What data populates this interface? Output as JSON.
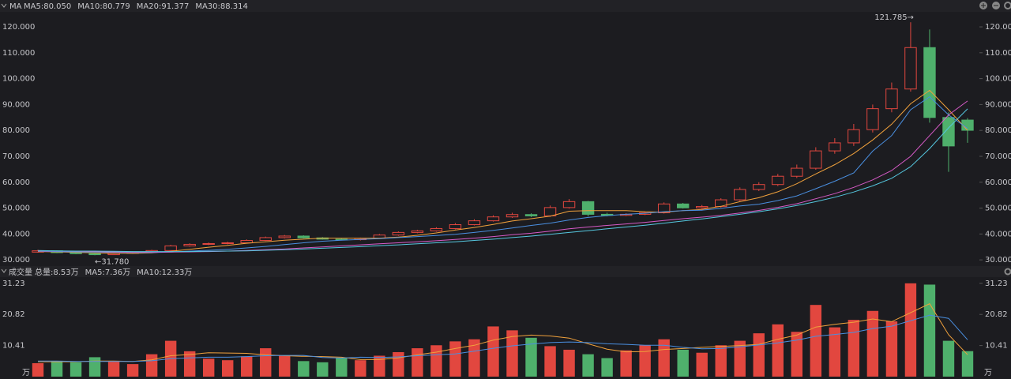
{
  "chart_data": [
    {
      "type": "candlestick",
      "legend_title": "MA",
      "open": [
        33.0,
        33.5,
        32.8,
        32.4,
        32.0,
        32.5,
        33.0,
        33.6,
        35.4,
        36.0,
        36.3,
        36.6,
        37.5,
        38.6,
        39.2,
        38.5,
        38.0,
        37.8,
        38.3,
        39.6,
        40.6,
        41.2,
        42.1,
        43.6,
        45.1,
        46.6,
        47.5,
        47.0,
        50.2,
        52.5,
        47.6,
        47.2,
        47.6,
        48.2,
        51.6,
        50.1,
        50.6,
        53.2,
        57.2,
        59.1,
        62.3,
        65.4,
        72.1,
        75.2,
        80.3,
        88.4,
        96.0,
        112.0,
        85.0,
        84.0
      ],
      "high": [
        33.9,
        33.7,
        33.0,
        32.6,
        32.8,
        33.3,
        33.9,
        35.8,
        36.4,
        36.7,
        37.0,
        37.9,
        39.0,
        39.6,
        39.5,
        38.8,
        38.3,
        38.6,
        40.0,
        41.0,
        41.6,
        42.6,
        44.2,
        45.7,
        47.2,
        48.2,
        48.0,
        51.0,
        53.5,
        52.8,
        48.2,
        48.0,
        48.6,
        52.2,
        52.0,
        51.2,
        53.8,
        58.0,
        60.0,
        63.2,
        66.8,
        73.5,
        77.0,
        82.5,
        90.0,
        98.5,
        121.785,
        119.0,
        87.0,
        84.8
      ],
      "low": [
        32.8,
        32.6,
        32.2,
        31.78,
        31.9,
        32.3,
        32.8,
        33.4,
        35.1,
        35.7,
        36.0,
        36.4,
        37.3,
        38.3,
        38.3,
        37.8,
        37.5,
        37.5,
        38.1,
        39.3,
        40.3,
        40.9,
        41.8,
        43.3,
        44.8,
        46.2,
        46.5,
        46.6,
        49.8,
        46.8,
        46.8,
        46.9,
        47.3,
        47.9,
        49.8,
        49.7,
        50.2,
        52.8,
        56.6,
        58.5,
        61.6,
        64.8,
        71.0,
        74.0,
        79.2,
        87.0,
        95.0,
        83.0,
        64.0,
        75.2
      ],
      "close": [
        33.5,
        32.8,
        32.4,
        32.0,
        32.5,
        33.0,
        33.6,
        35.4,
        36.0,
        36.3,
        36.6,
        37.5,
        38.6,
        39.2,
        38.5,
        38.0,
        37.8,
        38.3,
        39.6,
        40.6,
        41.2,
        42.1,
        43.6,
        45.1,
        46.6,
        47.5,
        47.0,
        50.2,
        52.5,
        47.6,
        47.2,
        47.6,
        48.2,
        51.6,
        50.1,
        50.6,
        53.2,
        57.2,
        59.1,
        62.3,
        65.4,
        72.1,
        75.2,
        80.3,
        88.4,
        96.0,
        112.0,
        85.0,
        74.0,
        80.05
      ],
      "up_color": "#e2473f",
      "down_color": "#4fb06c",
      "series": [
        {
          "name": "MA5:80.050",
          "color": "#f0a13c",
          "values": [
            33.2,
            33.1,
            32.9,
            32.7,
            32.6,
            32.5,
            32.7,
            33.3,
            34.1,
            34.9,
            35.6,
            36.4,
            37.0,
            37.6,
            38.0,
            38.4,
            38.4,
            38.4,
            38.4,
            38.8,
            39.5,
            40.4,
            41.5,
            42.5,
            43.7,
            45.0,
            45.9,
            46.9,
            48.8,
            49.0,
            49.0,
            49.0,
            48.6,
            48.4,
            49.0,
            49.5,
            50.7,
            52.5,
            54.0,
            56.3,
            59.4,
            63.2,
            66.8,
            71.1,
            76.3,
            82.4,
            90.3,
            95.5,
            88.0,
            80.05
          ]
        },
        {
          "name": "MA10:80.779",
          "color": "#4a8fe0",
          "values": [
            33.3,
            33.2,
            33.1,
            33.0,
            32.9,
            32.8,
            32.8,
            33.0,
            33.4,
            33.7,
            34.1,
            34.6,
            35.2,
            35.9,
            36.6,
            37.2,
            37.6,
            37.9,
            38.2,
            38.6,
            39.0,
            39.4,
            39.9,
            40.6,
            41.4,
            42.3,
            43.3,
            44.2,
            45.4,
            46.4,
            47.1,
            47.6,
            48.0,
            48.6,
            49.0,
            49.2,
            49.9,
            50.8,
            51.5,
            52.9,
            54.7,
            57.5,
            60.4,
            63.6,
            72.0,
            78.0,
            88.0,
            93.0,
            86.0,
            80.779
          ]
        },
        {
          "name": "MA20:91.377",
          "color": "#d65ac6",
          "values": [
            33.5,
            33.4,
            33.3,
            33.2,
            33.1,
            33.0,
            33.0,
            33.0,
            33.1,
            33.2,
            33.4,
            33.6,
            33.9,
            34.2,
            34.6,
            35.0,
            35.4,
            35.8,
            36.2,
            36.6,
            37.0,
            37.4,
            37.9,
            38.4,
            39.0,
            39.7,
            40.3,
            41.1,
            42.0,
            42.7,
            43.3,
            43.9,
            44.5,
            45.2,
            45.9,
            46.5,
            47.2,
            48.1,
            49.1,
            50.3,
            51.7,
            53.6,
            55.6,
            58.0,
            60.9,
            64.5,
            70.0,
            78.0,
            86.0,
            91.377
          ]
        },
        {
          "name": "MA30:88.314",
          "color": "#55c6de",
          "values": [
            33.6,
            33.5,
            33.4,
            33.4,
            33.3,
            33.2,
            33.2,
            33.2,
            33.2,
            33.3,
            33.4,
            33.5,
            33.7,
            33.9,
            34.2,
            34.5,
            34.8,
            35.1,
            35.5,
            35.8,
            36.2,
            36.6,
            37.0,
            37.5,
            38.0,
            38.6,
            39.2,
            39.9,
            40.6,
            41.3,
            42.0,
            42.7,
            43.4,
            44.2,
            45.0,
            45.8,
            46.7,
            47.6,
            48.6,
            49.7,
            51.0,
            52.5,
            54.2,
            56.2,
            58.6,
            61.5,
            66.0,
            73.0,
            81.0,
            88.314
          ]
        }
      ],
      "ylim": [
        27.6,
        125.5
      ],
      "yticks": [
        {
          "value": 30,
          "label": "30.000"
        },
        {
          "value": 40,
          "label": "40.000"
        },
        {
          "value": 50,
          "label": "50.000"
        },
        {
          "value": 60,
          "label": "60.000"
        },
        {
          "value": 70,
          "label": "70.000"
        },
        {
          "value": 80,
          "label": "80.000"
        },
        {
          "value": 90,
          "label": "90.000"
        },
        {
          "value": 100,
          "label": "100.000"
        },
        {
          "value": 110,
          "label": "110.000"
        },
        {
          "value": 120,
          "label": "120.000"
        }
      ],
      "max_label": "121.785→",
      "min_label": "←31.780"
    },
    {
      "type": "bar",
      "title": "成交量",
      "unit_label": "万",
      "series": [
        {
          "name": "总量:8.53万",
          "color": "#4fb06c",
          "values": [
            4.5,
            5.2,
            4.8,
            6.5,
            5.0,
            4.2,
            7.5,
            12.0,
            8.5,
            6.0,
            5.5,
            6.8,
            9.5,
            7.0,
            5.2,
            4.8,
            6.2,
            5.5,
            7.0,
            8.2,
            9.5,
            10.5,
            11.8,
            12.5,
            16.8,
            15.5,
            13.0,
            10.2,
            9.0,
            7.5,
            6.2,
            8.8,
            10.5,
            12.5,
            9.0,
            8.0,
            10.5,
            12.0,
            14.5,
            17.5,
            15.0,
            24.0,
            16.5,
            19.0,
            22.0,
            18.5,
            31.23,
            30.8,
            12.0,
            8.53
          ]
        },
        {
          "name": "MA5:7.36万",
          "color": "#f0a13c",
          "values": [
            5.0,
            5.0,
            5.0,
            5.2,
            5.2,
            5.1,
            5.6,
            7.0,
            7.4,
            8.0,
            7.9,
            7.8,
            7.3,
            7.0,
            6.8,
            6.7,
            6.5,
            5.7,
            5.7,
            6.3,
            7.3,
            8.2,
            9.4,
            10.5,
            12.2,
            13.4,
            13.9,
            13.6,
            12.9,
            11.0,
            9.2,
            8.3,
            8.4,
            9.1,
            9.4,
            9.8,
            10.1,
            10.4,
            10.8,
            12.5,
            13.9,
            16.6,
            17.5,
            18.2,
            19.3,
            18.4,
            21.4,
            24.4,
            14.0,
            7.36
          ]
        },
        {
          "name": "MA10:12.33万",
          "color": "#4a8fe0",
          "values": [
            5.2,
            5.2,
            5.1,
            5.1,
            5.1,
            5.1,
            5.3,
            6.0,
            6.3,
            6.5,
            6.5,
            6.7,
            7.0,
            7.1,
            7.1,
            6.4,
            6.2,
            6.5,
            6.4,
            6.6,
            7.0,
            7.3,
            7.6,
            8.5,
            9.5,
            10.3,
            10.9,
            11.4,
            11.6,
            11.4,
            11.0,
            10.8,
            10.5,
            10.5,
            9.8,
            9.3,
            9.4,
            10.0,
            10.6,
            11.3,
            12.2,
            13.5,
            14.1,
            14.8,
            16.1,
            16.9,
            18.7,
            20.6,
            19.5,
            12.33
          ]
        }
      ],
      "ylim": [
        0,
        33.3
      ],
      "yticks": [
        10.41,
        20.82,
        31.23
      ]
    }
  ]
}
